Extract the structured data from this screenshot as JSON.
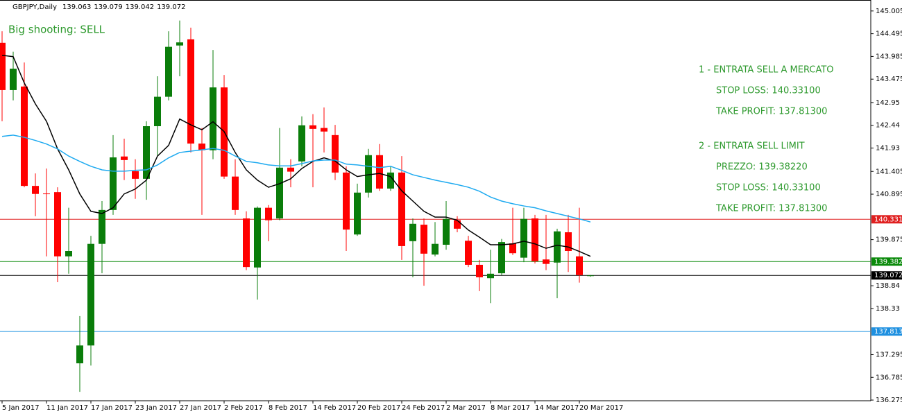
{
  "chart_data": {
    "type": "candlestick",
    "symbol": "GBPJPY,Daily",
    "annotations": [
      "Big shooting: SELL",
      "1 - ENTRATA SELL A MERCATO",
      "STOP LOSS: 140.33100",
      "TAKE PROFIT: 137.81300",
      "2 - ENTRATA SELL LIMIT",
      "PREZZO: 139.38220",
      "STOP LOSS: 140.33100",
      "TAKE PROFIT: 137.81300"
    ],
    "annotation_color": "#2e9a2e",
    "categories": [
      "5 Jan 2017",
      null,
      null,
      null,
      "11 Jan 2017",
      null,
      null,
      null,
      "17 Jan 2017",
      null,
      null,
      null,
      "23 Jan 2017",
      null,
      null,
      null,
      "27 Jan 2017",
      null,
      null,
      null,
      "2 Feb 2017",
      null,
      null,
      null,
      "8 Feb 2017",
      null,
      null,
      null,
      "14 Feb 2017",
      null,
      null,
      null,
      "20 Feb 2017",
      null,
      null,
      null,
      "24 Feb 2017",
      null,
      null,
      null,
      "2 Mar 2017",
      null,
      null,
      null,
      "8 Mar 2017",
      null,
      null,
      null,
      "14 Mar 2017",
      null,
      null,
      null,
      "20 Mar 2017",
      null
    ],
    "open": [
      144.29,
      143.23,
      143.31,
      141.08,
      140.91,
      140.94,
      139.5,
      137.1,
      137.5,
      139.78,
      140.54,
      141.74,
      141.41,
      141.24,
      142.42,
      143.08,
      144.23,
      144.37,
      142.03,
      141.88,
      143.29,
      141.29,
      140.35,
      139.25,
      140.59,
      140.35,
      141.49,
      141.63,
      142.44,
      142.38,
      142.22,
      141.38,
      139.99,
      140.93,
      141.77,
      141.02,
      141.38,
      139.84,
      140.21,
      139.54,
      139.76,
      140.31,
      139.85,
      139.31,
      139.01,
      139.12,
      139.79,
      139.47,
      140.35,
      139.43,
      139.36,
      140.04,
      139.5,
      139.063
    ],
    "high": [
      144.55,
      144.09,
      143.85,
      141.36,
      141.47,
      141.05,
      140.59,
      138.16,
      139.96,
      140.74,
      142.22,
      142.14,
      141.68,
      142.53,
      143.54,
      144.55,
      144.79,
      144.63,
      142.38,
      144.13,
      143.57,
      141.68,
      140.51,
      140.62,
      140.65,
      142.38,
      141.68,
      142.64,
      142.69,
      142.84,
      142.45,
      141.52,
      141.13,
      141.91,
      142.02,
      141.52,
      141.75,
      140.35,
      140.35,
      140.27,
      140.74,
      140.4,
      139.96,
      139.42,
      139.65,
      139.89,
      140.59,
      140.59,
      140.43,
      140.43,
      140.12,
      140.43,
      140.59,
      139.079
    ],
    "low": [
      142.53,
      143.0,
      141.05,
      140.4,
      139.5,
      138.92,
      139.11,
      136.46,
      137.05,
      139.12,
      140.43,
      141.21,
      140.79,
      140.77,
      141.75,
      143.0,
      143.54,
      141.83,
      140.43,
      141.68,
      141.24,
      140.43,
      139.19,
      138.53,
      139.84,
      140.31,
      141.05,
      141.52,
      141.05,
      141.83,
      141.21,
      139.62,
      139.96,
      140.82,
      140.97,
      140.97,
      139.42,
      139.03,
      138.84,
      139.5,
      139.65,
      140.04,
      139.26,
      138.72,
      138.45,
      139.08,
      139.53,
      139.37,
      139.34,
      139.19,
      138.56,
      139.15,
      138.91,
      139.042
    ],
    "close": [
      143.23,
      143.71,
      141.08,
      140.9,
      140.9,
      139.5,
      139.62,
      137.5,
      139.78,
      140.54,
      141.72,
      141.66,
      141.24,
      142.42,
      143.08,
      144.2,
      144.3,
      142.03,
      141.88,
      143.29,
      141.29,
      140.54,
      139.26,
      140.59,
      140.31,
      141.49,
      141.4,
      142.44,
      142.36,
      142.3,
      141.38,
      140.1,
      140.93,
      141.77,
      141.02,
      141.38,
      139.73,
      140.23,
      139.56,
      139.78,
      140.34,
      140.12,
      139.31,
      139.03,
      139.11,
      139.82,
      139.57,
      140.34,
      139.39,
      139.33,
      140.06,
      139.62,
      139.08,
      139.072
    ],
    "up_color": "#0a7d0a",
    "down_color": "#ff0000",
    "lines": [
      {
        "color": "#000000",
        "values": [
          144.01,
          143.98,
          143.39,
          142.92,
          142.53,
          141.91,
          141.44,
          140.9,
          140.51,
          140.46,
          140.59,
          140.9,
          141.01,
          141.21,
          141.75,
          141.99,
          142.58,
          142.45,
          142.34,
          142.52,
          142.3,
          141.83,
          141.44,
          141.21,
          141.05,
          141.13,
          141.24,
          141.47,
          141.63,
          141.71,
          141.64,
          141.44,
          141.29,
          141.33,
          141.36,
          141.29,
          140.97,
          140.74,
          140.51,
          140.38,
          140.38,
          140.31,
          140.09,
          139.93,
          139.76,
          139.76,
          139.78,
          139.84,
          139.78,
          139.68,
          139.75,
          139.71,
          139.61,
          139.5
        ]
      },
      {
        "color": "#1eaaf0",
        "values": [
          142.19,
          142.22,
          142.17,
          142.1,
          142.02,
          141.91,
          141.75,
          141.63,
          141.52,
          141.44,
          141.41,
          141.41,
          141.43,
          141.44,
          141.55,
          141.71,
          141.83,
          141.86,
          141.89,
          141.92,
          141.88,
          141.75,
          141.63,
          141.6,
          141.55,
          141.53,
          141.53,
          141.58,
          141.64,
          141.66,
          141.66,
          141.57,
          141.55,
          141.52,
          141.49,
          141.52,
          141.43,
          141.33,
          141.27,
          141.21,
          141.16,
          141.11,
          141.05,
          140.96,
          140.83,
          140.74,
          140.68,
          140.63,
          140.59,
          140.52,
          140.46,
          140.4,
          140.34,
          140.27
        ]
      }
    ],
    "hlines": [
      {
        "value": 140.331,
        "color": "#e02020"
      },
      {
        "value": 139.382,
        "color": "#0a8a0a"
      },
      {
        "value": 139.072,
        "color": "#000000"
      },
      {
        "value": 137.813,
        "color": "#1e90e0"
      }
    ],
    "ylim": [
      136.26,
      145.22
    ],
    "yticks": [
      145.005,
      144.495,
      143.985,
      143.475,
      142.95,
      142.44,
      141.93,
      141.405,
      140.895,
      139.875,
      138.84,
      138.33,
      137.295,
      136.785,
      136.275
    ]
  }
}
